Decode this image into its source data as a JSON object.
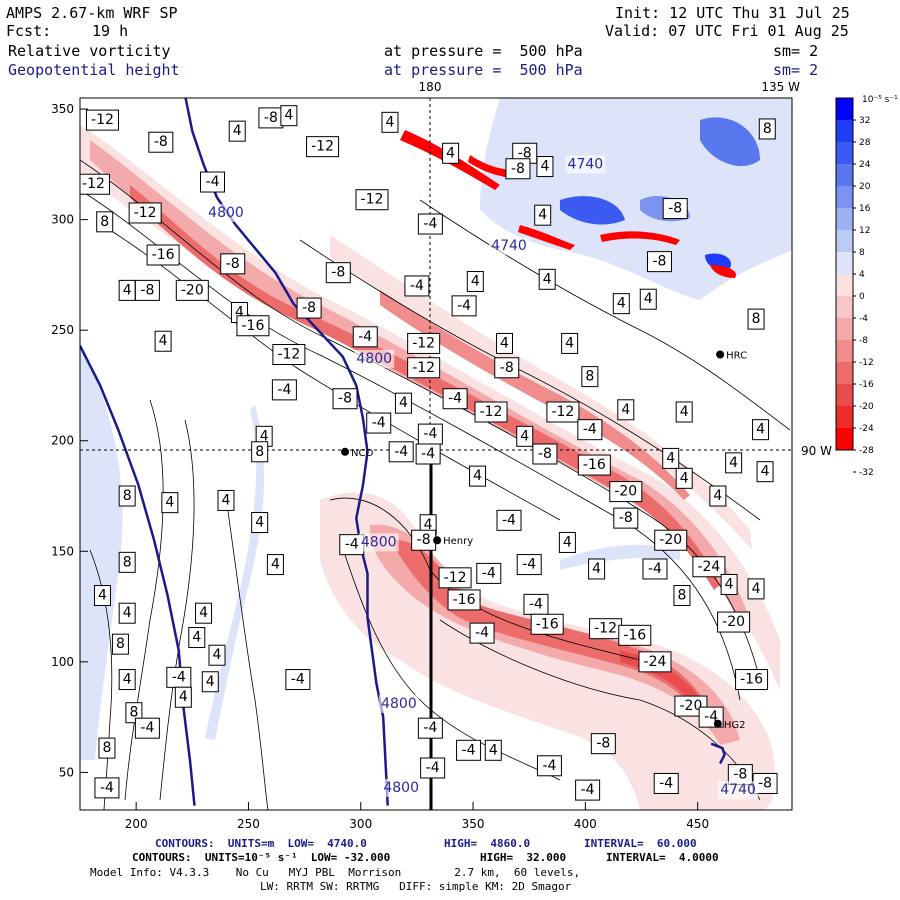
{
  "header": {
    "title": "AMPS 2.67-km WRF SP",
    "fcst_label": "Fcst:",
    "fcst_value": "19 h",
    "init": "Init: 12 UTC Thu 31 Jul 25",
    "valid": "Valid: 07 UTC Fri 01 Aug 25",
    "field1_name": "Relative vorticity",
    "field1_level": "at pressure =  500 hPa",
    "field1_sm": "sm= 2",
    "field2_name": "Geopotential height",
    "field2_level": "at pressure =  500 hPa",
    "field2_sm": "sm= 2"
  },
  "map_labels": {
    "lon_180": "180",
    "lon_135w": "135 W",
    "lon_90w": "90 W"
  },
  "stations": [
    {
      "name": "NCO",
      "x": 293,
      "y": 195
    },
    {
      "name": "Henry",
      "x": 334,
      "y": 155
    },
    {
      "name": "HRC",
      "x": 460,
      "y": 239
    },
    {
      "name": "HG2",
      "x": 459,
      "y": 72
    }
  ],
  "colors": {
    "positive_strong": "#0000ff",
    "positive_light": "#dde4fa",
    "negative_strong": "#ff0000",
    "negative_light": "#fbe2e2",
    "height_contour": "#1a1a8c"
  },
  "chart_data": {
    "type": "heatmap",
    "x_ticks": [
      "200",
      "250",
      "300",
      "350",
      "400",
      "450"
    ],
    "y_ticks": [
      "50",
      "100",
      "150",
      "200",
      "250",
      "300",
      "350"
    ],
    "xlim": [
      175,
      492
    ],
    "ylim": [
      33,
      355
    ],
    "colorbar": {
      "unit_label": "10⁻⁵ s⁻¹",
      "ticks": [
        "32",
        "28",
        "24",
        "20",
        "16",
        "12",
        "8",
        "4",
        "0",
        "-4",
        "-8",
        "-12",
        "-16",
        "-20",
        "-24",
        "-28",
        "-32"
      ],
      "colors": [
        "#0000ff",
        "#1f3cf7",
        "#3a5af2",
        "#5a78ee",
        "#7b93ef",
        "#9db0f2",
        "#bccaf6",
        "#dde4fa",
        "#fbe2e2",
        "#f8c6c6",
        "#f4aaaa",
        "#f08c8c",
        "#ec6c6c",
        "#ea4c4c",
        "#ee2c2c",
        "#ff0000"
      ]
    },
    "vorticity_labels": [
      {
        "v": "-12",
        "x": 185,
        "y": 345
      },
      {
        "v": "-8",
        "x": 211,
        "y": 335
      },
      {
        "v": "4",
        "x": 245,
        "y": 340
      },
      {
        "v": "-8",
        "x": 260,
        "y": 346
      },
      {
        "v": "4",
        "x": 268,
        "y": 347
      },
      {
        "v": "-12",
        "x": 283,
        "y": 333
      },
      {
        "v": "4",
        "x": 313,
        "y": 344
      },
      {
        "v": "4",
        "x": 340,
        "y": 330
      },
      {
        "v": "-12",
        "x": 181,
        "y": 316
      },
      {
        "v": "-4",
        "x": 234,
        "y": 317
      },
      {
        "v": "-12",
        "x": 204,
        "y": 303
      },
      {
        "v": "8",
        "x": 186,
        "y": 299
      },
      {
        "v": "-16",
        "x": 212,
        "y": 284
      },
      {
        "v": "-8",
        "x": 243,
        "y": 280
      },
      {
        "v": "-12",
        "x": 305,
        "y": 309
      },
      {
        "v": "-4",
        "x": 331,
        "y": 298
      },
      {
        "v": "4",
        "x": 382,
        "y": 324
      },
      {
        "v": "4",
        "x": 381,
        "y": 302
      },
      {
        "v": "-8",
        "x": 290,
        "y": 276
      },
      {
        "v": "4",
        "x": 196,
        "y": 268
      },
      {
        "v": "-8",
        "x": 205,
        "y": 268
      },
      {
        "v": "-20",
        "x": 225,
        "y": 268
      },
      {
        "v": "-4",
        "x": 325,
        "y": 270
      },
      {
        "v": "4",
        "x": 351,
        "y": 272
      },
      {
        "v": "4",
        "x": 383,
        "y": 273
      },
      {
        "v": "4",
        "x": 246,
        "y": 258
      },
      {
        "v": "-8",
        "x": 277,
        "y": 260
      },
      {
        "v": "-4",
        "x": 346,
        "y": 261
      },
      {
        "v": "-16",
        "x": 252,
        "y": 252
      },
      {
        "v": "4",
        "x": 212,
        "y": 245
      },
      {
        "v": "-4",
        "x": 302,
        "y": 247
      },
      {
        "v": "-12",
        "x": 328,
        "y": 244
      },
      {
        "v": "4",
        "x": 364,
        "y": 244
      },
      {
        "v": "4",
        "x": 393,
        "y": 244
      },
      {
        "v": "-12",
        "x": 268,
        "y": 239
      },
      {
        "v": "-12",
        "x": 328,
        "y": 233
      },
      {
        "v": "-8",
        "x": 365,
        "y": 233
      },
      {
        "v": "8",
        "x": 402,
        "y": 229
      },
      {
        "v": "-4",
        "x": 266,
        "y": 223
      },
      {
        "v": "-8",
        "x": 293,
        "y": 219
      },
      {
        "v": "4",
        "x": 319,
        "y": 217
      },
      {
        "v": "-4",
        "x": 342,
        "y": 219
      },
      {
        "v": "-12",
        "x": 358,
        "y": 213
      },
      {
        "v": "-12",
        "x": 390,
        "y": 213
      },
      {
        "v": "4",
        "x": 418,
        "y": 214
      },
      {
        "v": "4",
        "x": 444,
        "y": 213
      },
      {
        "v": "-4",
        "x": 308,
        "y": 208
      },
      {
        "v": "4",
        "x": 257,
        "y": 202
      },
      {
        "v": "-4",
        "x": 331,
        "y": 203
      },
      {
        "v": "4",
        "x": 373,
        "y": 202
      },
      {
        "v": "-4",
        "x": 402,
        "y": 205
      },
      {
        "v": "4",
        "x": 478,
        "y": 205
      },
      {
        "v": "-4",
        "x": 330,
        "y": 194
      },
      {
        "v": "-8",
        "x": 382,
        "y": 194
      },
      {
        "v": "-16",
        "x": 404,
        "y": 189
      },
      {
        "v": "4",
        "x": 438,
        "y": 192
      },
      {
        "v": "4",
        "x": 466,
        "y": 190
      },
      {
        "v": "8",
        "x": 255,
        "y": 195
      },
      {
        "v": "-4",
        "x": 318,
        "y": 195
      },
      {
        "v": "4",
        "x": 352,
        "y": 184
      },
      {
        "v": "4",
        "x": 444,
        "y": 183
      },
      {
        "v": "4",
        "x": 480,
        "y": 186
      },
      {
        "v": "8",
        "x": 196,
        "y": 175
      },
      {
        "v": "4",
        "x": 240,
        "y": 173
      },
      {
        "v": "4",
        "x": 215,
        "y": 172
      },
      {
        "v": "-20",
        "x": 418,
        "y": 177
      },
      {
        "v": "4",
        "x": 459,
        "y": 175
      },
      {
        "v": "4",
        "x": 255,
        "y": 163
      },
      {
        "v": "-4",
        "x": 366,
        "y": 164
      },
      {
        "v": "-8",
        "x": 418,
        "y": 165
      },
      {
        "v": "-4",
        "x": 296,
        "y": 153
      },
      {
        "v": "4",
        "x": 330,
        "y": 162
      },
      {
        "v": "-8",
        "x": 328,
        "y": 155
      },
      {
        "v": "4",
        "x": 392,
        "y": 154
      },
      {
        "v": "-20",
        "x": 438,
        "y": 155
      },
      {
        "v": "8",
        "x": 196,
        "y": 145
      },
      {
        "v": "4",
        "x": 262,
        "y": 144
      },
      {
        "v": "-12",
        "x": 342,
        "y": 138
      },
      {
        "v": "-4",
        "x": 357,
        "y": 140
      },
      {
        "v": "-4",
        "x": 375,
        "y": 144
      },
      {
        "v": "4",
        "x": 405,
        "y": 142
      },
      {
        "v": "-4",
        "x": 431,
        "y": 142
      },
      {
        "v": "-24",
        "x": 455,
        "y": 143
      },
      {
        "v": "4",
        "x": 464,
        "y": 135
      },
      {
        "v": "4",
        "x": 476,
        "y": 133
      },
      {
        "v": "4",
        "x": 185,
        "y": 130
      },
      {
        "v": "-16",
        "x": 346,
        "y": 128
      },
      {
        "v": "-4",
        "x": 378,
        "y": 126
      },
      {
        "v": "8",
        "x": 443,
        "y": 130
      },
      {
        "v": "4",
        "x": 196,
        "y": 122
      },
      {
        "v": "4",
        "x": 230,
        "y": 122
      },
      {
        "v": "-20",
        "x": 466,
        "y": 118
      },
      {
        "v": "-16",
        "x": 383,
        "y": 117
      },
      {
        "v": "-12",
        "x": 409,
        "y": 115
      },
      {
        "v": "-16",
        "x": 422,
        "y": 112
      },
      {
        "v": "-4",
        "x": 354,
        "y": 113
      },
      {
        "v": "4",
        "x": 227,
        "y": 111
      },
      {
        "v": "8",
        "x": 193,
        "y": 108
      },
      {
        "v": "4",
        "x": 236,
        "y": 103
      },
      {
        "v": "-24",
        "x": 431,
        "y": 100
      },
      {
        "v": "4",
        "x": 196,
        "y": 92
      },
      {
        "v": "-4",
        "x": 219,
        "y": 93
      },
      {
        "v": "4",
        "x": 233,
        "y": 91
      },
      {
        "v": "-4",
        "x": 272,
        "y": 92
      },
      {
        "v": "-16",
        "x": 474,
        "y": 92
      },
      {
        "v": "4",
        "x": 221,
        "y": 84
      },
      {
        "v": "8",
        "x": 199,
        "y": 77
      },
      {
        "v": "-20",
        "x": 447,
        "y": 80
      },
      {
        "v": "-4",
        "x": 205,
        "y": 70
      },
      {
        "v": "-4",
        "x": 331,
        "y": 70
      },
      {
        "v": "-4",
        "x": 456,
        "y": 75
      },
      {
        "v": "8",
        "x": 187,
        "y": 61
      },
      {
        "v": "4",
        "x": 359,
        "y": 60
      },
      {
        "v": "-8",
        "x": 408,
        "y": 63
      },
      {
        "v": "-4",
        "x": 384,
        "y": 53
      },
      {
        "v": "-4",
        "x": 332,
        "y": 52
      },
      {
        "v": "-4",
        "x": 348,
        "y": 60
      },
      {
        "v": "-8",
        "x": 469,
        "y": 49
      },
      {
        "v": "-4",
        "x": 187,
        "y": 43
      },
      {
        "v": "-4",
        "x": 401,
        "y": 42
      },
      {
        "v": "-4",
        "x": 436,
        "y": 45
      },
      {
        "v": "-8",
        "x": 480,
        "y": 45
      },
      {
        "v": "-8",
        "x": 433,
        "y": 281
      },
      {
        "v": "8",
        "x": 481,
        "y": 341
      },
      {
        "v": "-8",
        "x": 440,
        "y": 305
      },
      {
        "v": "-8",
        "x": 373,
        "y": 330
      },
      {
        "v": "-8",
        "x": 370,
        "y": 323
      },
      {
        "v": "8",
        "x": 476,
        "y": 255
      },
      {
        "v": "4",
        "x": 428,
        "y": 264
      },
      {
        "v": "4",
        "x": 416,
        "y": 262
      }
    ],
    "height_labels": [
      {
        "v": "4800",
        "x": 240,
        "y": 303
      },
      {
        "v": "4800",
        "x": 306,
        "y": 237
      },
      {
        "v": "4800",
        "x": 308,
        "y": 154
      },
      {
        "v": "4800",
        "x": 317,
        "y": 81
      },
      {
        "v": "4800",
        "x": 318,
        "y": 43
      },
      {
        "v": "4740",
        "x": 468,
        "y": 42
      },
      {
        "v": "4740",
        "x": 400,
        "y": 325
      },
      {
        "v": "4740",
        "x": 366,
        "y": 288
      }
    ],
    "height_lines": [
      [
        [
          175,
          243
        ],
        [
          184,
          225
        ],
        [
          192,
          205
        ],
        [
          201,
          180
        ],
        [
          208,
          155
        ],
        [
          214,
          130
        ],
        [
          219,
          105
        ],
        [
          221,
          80
        ],
        [
          224,
          55
        ],
        [
          226,
          35
        ]
      ],
      [
        [
          222,
          355
        ],
        [
          225,
          340
        ],
        [
          230,
          325
        ],
        [
          236,
          310
        ],
        [
          244,
          298
        ],
        [
          253,
          287
        ],
        [
          262,
          276
        ],
        [
          270,
          262
        ],
        [
          281,
          250
        ],
        [
          292,
          238
        ],
        [
          298,
          225
        ],
        [
          301,
          210
        ],
        [
          303,
          195
        ],
        [
          301,
          180
        ],
        [
          298,
          165
        ],
        [
          300,
          152
        ],
        [
          303,
          140
        ],
        [
          303,
          120
        ],
        [
          305,
          105
        ],
        [
          307,
          90
        ],
        [
          310,
          75
        ],
        [
          311,
          55
        ],
        [
          312,
          35
        ]
      ],
      [
        [
          456,
          63
        ],
        [
          461,
          61
        ],
        [
          462,
          58
        ],
        [
          460,
          54
        ]
      ]
    ]
  },
  "footer": {
    "line1_a": "CONTOURS:  UNITS=m  LOW=  4740.0",
    "line1_b": "HIGH=  4860.0",
    "line1_c": "INTERVAL=  60.000",
    "line2_a": "CONTOURS:  UNITS=10⁻⁵ s⁻¹  LOW= -32.000",
    "line2_b": "HIGH=  32.000",
    "line2_c": "INTERVAL=  4.0000",
    "line3": "Model Info: V4.3.3    No Cu   MYJ PBL  Morrison        2.7 km,  60 levels,",
    "line4": "LW: RRTM SW: RRTMG   DIFF: simple KM: 2D Smagor"
  }
}
